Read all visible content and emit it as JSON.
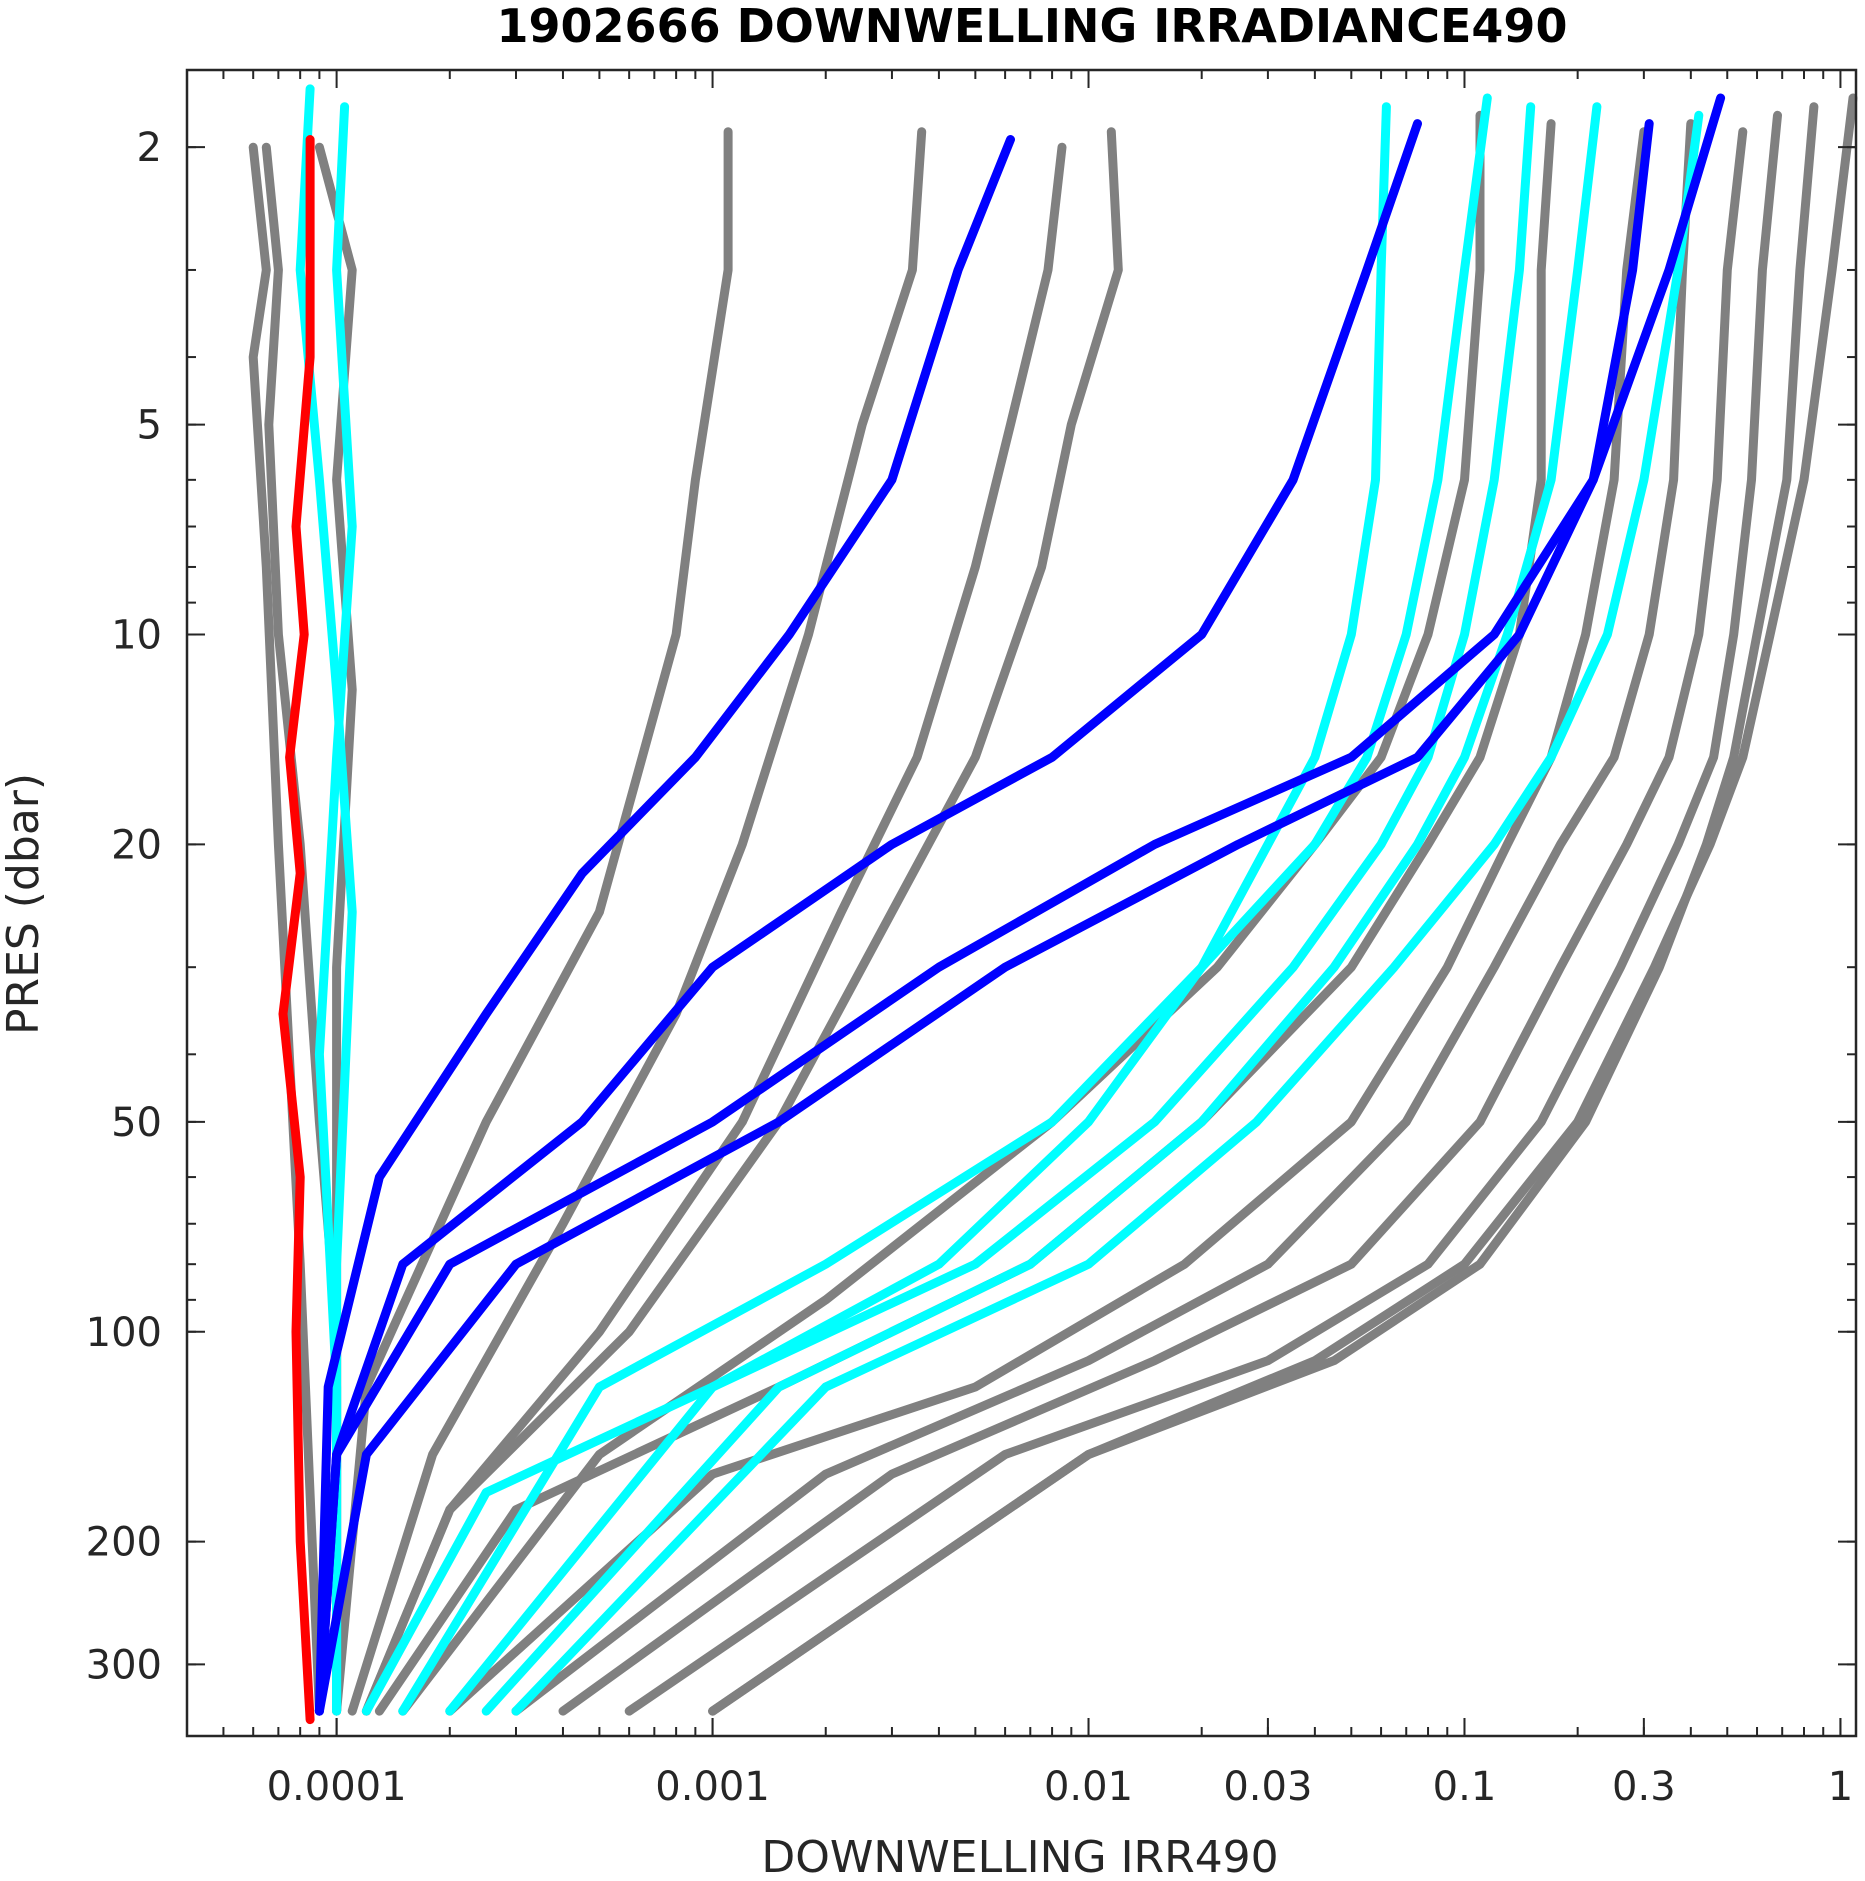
{
  "chart_data": {
    "type": "line",
    "title": "1902666  DOWNWELLING IRRADIANCE490",
    "xlabel": "DOWNWELLING IRR490",
    "ylabel": "PRES (dbar)",
    "xscale": "log",
    "yscale": "log",
    "yreversed": true,
    "xlim": [
      4e-05,
      1.1
    ],
    "ylim": [
      1.55,
      380
    ],
    "grid": false,
    "xticks": [
      {
        "value": 0.0001,
        "label": "0.0001"
      },
      {
        "value": 0.001,
        "label": "0.001"
      },
      {
        "value": 0.01,
        "label": "0.01"
      },
      {
        "value": 0.03,
        "label": "0.03"
      },
      {
        "value": 0.1,
        "label": "0.1"
      },
      {
        "value": 0.3,
        "label": "0.3"
      },
      {
        "value": 1,
        "label": "1"
      }
    ],
    "yticks": [
      {
        "value": 2,
        "label": "2"
      },
      {
        "value": 5,
        "label": "5"
      },
      {
        "value": 10,
        "label": "10"
      },
      {
        "value": 20,
        "label": "20"
      },
      {
        "value": 50,
        "label": "50"
      },
      {
        "value": 100,
        "label": "100"
      },
      {
        "value": 200,
        "label": "200"
      },
      {
        "value": 300,
        "label": "300"
      }
    ],
    "colors": {
      "gray": "#808080",
      "cyan": "#00ffff",
      "blue": "#0000ff",
      "red": "#ff0000"
    },
    "series": [
      {
        "color": "gray",
        "x": [
          6.5e-05,
          7e-05,
          6.6e-05,
          7e-05,
          8e-05,
          9e-05,
          0.0001,
          0.0001
        ],
        "y": [
          2,
          3,
          5,
          10,
          20,
          50,
          100,
          350
        ]
      },
      {
        "color": "gray",
        "x": [
          9e-05,
          0.00011,
          0.0001,
          0.00011,
          0.0001,
          0.0001,
          0.0001
        ],
        "y": [
          2,
          3,
          6,
          12,
          30,
          100,
          350
        ]
      },
      {
        "color": "gray",
        "x": [
          6e-05,
          6.5e-05,
          6e-05,
          6.5e-05,
          7e-05,
          8e-05,
          9e-05
        ],
        "y": [
          2,
          3,
          4,
          8,
          20,
          80,
          350
        ]
      },
      {
        "color": "gray",
        "x": [
          0.0011,
          0.0011,
          0.0009,
          0.0008,
          0.00065,
          0.0005,
          0.00025,
          0.00012,
          0.0001
        ],
        "y": [
          1.9,
          3,
          6,
          10,
          15,
          25,
          50,
          120,
          350
        ]
      },
      {
        "color": "gray",
        "x": [
          0.0036,
          0.0034,
          0.0025,
          0.0018,
          0.0012,
          0.0008,
          0.0004,
          0.00018,
          0.00011
        ],
        "y": [
          1.9,
          3,
          5,
          10,
          20,
          35,
          70,
          150,
          350
        ]
      },
      {
        "color": "gray",
        "x": [
          0.0085,
          0.0078,
          0.0062,
          0.005,
          0.0035,
          0.0022,
          0.0012,
          0.0005,
          0.0002,
          0.00012
        ],
        "y": [
          2,
          3,
          5,
          8,
          15,
          25,
          50,
          100,
          180,
          350
        ]
      },
      {
        "color": "gray",
        "x": [
          0.0115,
          0.012,
          0.009,
          0.0075,
          0.005,
          0.003,
          0.0015,
          0.0006,
          0.0002,
          0.00012
        ],
        "y": [
          1.9,
          3,
          5,
          8,
          15,
          25,
          50,
          100,
          180,
          350
        ]
      },
      {
        "color": "gray",
        "x": [
          0.11,
          0.11,
          0.1,
          0.08,
          0.06,
          0.04,
          0.022,
          0.008,
          0.002,
          0.0005,
          0.00015
        ],
        "y": [
          1.8,
          3,
          6,
          10,
          15,
          20,
          30,
          50,
          90,
          150,
          350
        ]
      },
      {
        "color": "gray",
        "x": [
          0.17,
          0.16,
          0.16,
          0.14,
          0.11,
          0.08,
          0.05,
          0.02,
          0.007,
          0.0015,
          0.0003,
          0.00013
        ],
        "y": [
          1.85,
          3,
          6,
          10,
          15,
          20,
          30,
          50,
          80,
          120,
          180,
          350
        ]
      },
      {
        "color": "gray",
        "x": [
          0.3,
          0.27,
          0.25,
          0.21,
          0.17,
          0.13,
          0.09,
          0.05,
          0.018,
          0.005,
          0.001,
          0.0002
        ],
        "y": [
          1.9,
          3,
          6,
          10,
          15,
          20,
          30,
          50,
          80,
          120,
          160,
          350
        ]
      },
      {
        "color": "gray",
        "x": [
          0.4,
          0.38,
          0.36,
          0.31,
          0.25,
          0.18,
          0.12,
          0.07,
          0.03,
          0.01,
          0.002,
          0.0003
        ],
        "y": [
          1.85,
          3,
          6,
          10,
          15,
          20,
          30,
          50,
          80,
          110,
          160,
          350
        ]
      },
      {
        "color": "gray",
        "x": [
          0.55,
          0.5,
          0.47,
          0.42,
          0.35,
          0.27,
          0.18,
          0.11,
          0.05,
          0.015,
          0.003,
          0.0004
        ],
        "y": [
          1.9,
          3,
          6,
          10,
          15,
          20,
          30,
          50,
          80,
          110,
          160,
          350
        ]
      },
      {
        "color": "gray",
        "x": [
          0.68,
          0.62,
          0.58,
          0.52,
          0.46,
          0.37,
          0.26,
          0.16,
          0.08,
          0.03,
          0.006,
          0.0006
        ],
        "y": [
          1.8,
          3,
          6,
          10,
          15,
          20,
          30,
          50,
          80,
          110,
          150,
          350
        ]
      },
      {
        "color": "gray",
        "x": [
          0.85,
          0.78,
          0.72,
          0.6,
          0.52,
          0.44,
          0.33,
          0.21,
          0.11,
          0.045,
          0.01,
          0.001
        ],
        "y": [
          1.75,
          3,
          6,
          10,
          15,
          20,
          30,
          50,
          80,
          110,
          150,
          350
        ]
      },
      {
        "color": "gray",
        "x": [
          1.08,
          0.95,
          0.8,
          0.65,
          0.55,
          0.45,
          0.32,
          0.2,
          0.1,
          0.04,
          0.01,
          0.001
        ],
        "y": [
          1.7,
          3,
          6,
          10,
          15,
          20,
          30,
          50,
          80,
          110,
          150,
          350
        ]
      },
      {
        "color": "cyan",
        "x": [
          8.5e-05,
          8e-05,
          9e-05,
          0.0001,
          0.00011,
          0.0001,
          0.0001
        ],
        "y": [
          1.65,
          3,
          6,
          12,
          25,
          80,
          350
        ]
      },
      {
        "color": "cyan",
        "x": [
          0.000105,
          0.0001,
          0.00011,
          0.0001,
          9e-05,
          0.0001,
          0.0001
        ],
        "y": [
          1.75,
          3,
          7,
          15,
          40,
          120,
          350
        ]
      },
      {
        "color": "cyan",
        "x": [
          0.062,
          0.06,
          0.058,
          0.05,
          0.04,
          0.03,
          0.02,
          0.01,
          0.004,
          0.001,
          0.00025,
          0.00012
        ],
        "y": [
          1.75,
          3,
          6,
          10,
          15,
          20,
          30,
          50,
          80,
          120,
          170,
          350
        ]
      },
      {
        "color": "cyan",
        "x": [
          0.115,
          0.1,
          0.085,
          0.07,
          0.055,
          0.04,
          0.02,
          0.008,
          0.002,
          0.0005,
          0.00015
        ],
        "y": [
          1.7,
          3,
          6,
          10,
          15,
          20,
          30,
          50,
          80,
          120,
          350
        ]
      },
      {
        "color": "cyan",
        "x": [
          0.15,
          0.14,
          0.12,
          0.1,
          0.08,
          0.06,
          0.035,
          0.015,
          0.005,
          0.001,
          0.0002
        ],
        "y": [
          1.75,
          3,
          6,
          10,
          15,
          20,
          30,
          50,
          80,
          120,
          350
        ]
      },
      {
        "color": "cyan",
        "x": [
          0.225,
          0.2,
          0.17,
          0.13,
          0.1,
          0.075,
          0.045,
          0.02,
          0.007,
          0.0015,
          0.00025
        ],
        "y": [
          1.75,
          3,
          6,
          10,
          15,
          20,
          30,
          50,
          80,
          120,
          350
        ]
      },
      {
        "color": "cyan",
        "x": [
          0.42,
          0.37,
          0.3,
          0.24,
          0.17,
          0.12,
          0.065,
          0.028,
          0.01,
          0.002,
          0.0003
        ],
        "y": [
          1.8,
          3,
          6,
          10,
          15,
          20,
          30,
          50,
          80,
          120,
          350
        ]
      },
      {
        "color": "blue",
        "x": [
          0.0062,
          0.0045,
          0.003,
          0.0016,
          0.0009,
          0.00045,
          0.00025,
          0.00013,
          9.5e-05,
          9e-05
        ],
        "y": [
          1.95,
          3,
          6,
          10,
          15,
          22,
          35,
          60,
          120,
          350
        ]
      },
      {
        "color": "blue",
        "x": [
          0.075,
          0.055,
          0.035,
          0.02,
          0.008,
          0.003,
          0.001,
          0.00045,
          0.00015,
          0.0001,
          9e-05
        ],
        "y": [
          1.85,
          3,
          6,
          10,
          15,
          20,
          30,
          50,
          80,
          150,
          350
        ]
      },
      {
        "color": "blue",
        "x": [
          0.48,
          0.35,
          0.22,
          0.12,
          0.05,
          0.015,
          0.004,
          0.001,
          0.0002,
          0.0001,
          9e-05
        ],
        "y": [
          1.7,
          3,
          6,
          10,
          15,
          20,
          30,
          50,
          80,
          150,
          350
        ]
      },
      {
        "color": "blue",
        "x": [
          0.31,
          0.28,
          0.22,
          0.14,
          0.075,
          0.025,
          0.006,
          0.0015,
          0.0003,
          0.00012,
          9e-05
        ],
        "y": [
          1.85,
          3,
          6,
          10,
          15,
          20,
          30,
          50,
          80,
          150,
          350
        ]
      },
      {
        "color": "red",
        "x": [
          8.5e-05,
          8.5e-05,
          7.8e-05,
          8.2e-05,
          7.5e-05,
          8e-05,
          7.2e-05,
          8e-05,
          7.8e-05,
          8e-05,
          8.5e-05
        ],
        "y": [
          1.95,
          4,
          7,
          10,
          15,
          22,
          35,
          60,
          100,
          200,
          360
        ]
      }
    ]
  }
}
